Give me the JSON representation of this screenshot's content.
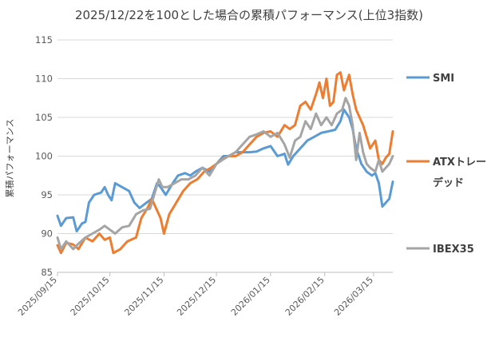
{
  "chart_data": {
    "type": "line",
    "title": "2025/12/22を100とした場合の累積パフォーマンス(上位3指数)",
    "xlabel": "",
    "ylabel": "累積パフォーマンス",
    "ylim": [
      85,
      115
    ],
    "yticks": [
      85,
      90,
      95,
      100,
      105,
      110,
      115
    ],
    "xlim": [
      "2025-09-15",
      "2026-03-26"
    ],
    "xticks": [
      "2025/09/15",
      "2025/10/15",
      "2025/11/15",
      "2025/12/15",
      "2026/01/15",
      "2026/02/15",
      "2026/03/15"
    ],
    "grid": "horizontal",
    "legend_position": "right",
    "series": [
      {
        "name": "SMI",
        "color": "#5b9bd5",
        "points": [
          [
            "2025-09-15",
            92.3
          ],
          [
            "2025-09-17",
            91.0
          ],
          [
            "2025-09-20",
            92.0
          ],
          [
            "2025-09-24",
            92.1
          ],
          [
            "2025-09-26",
            90.3
          ],
          [
            "2025-09-29",
            91.3
          ],
          [
            "2025-10-01",
            91.5
          ],
          [
            "2025-10-03",
            94.0
          ],
          [
            "2025-10-06",
            95.0
          ],
          [
            "2025-10-10",
            95.3
          ],
          [
            "2025-10-12",
            96.0
          ],
          [
            "2025-10-14",
            95.0
          ],
          [
            "2025-10-16",
            94.3
          ],
          [
            "2025-10-18",
            96.5
          ],
          [
            "2025-10-22",
            96.0
          ],
          [
            "2025-10-26",
            95.5
          ],
          [
            "2025-10-29",
            94.0
          ],
          [
            "2025-11-01",
            93.3
          ],
          [
            "2025-11-05",
            94.0
          ],
          [
            "2025-11-08",
            94.5
          ],
          [
            "2025-11-11",
            96.5
          ],
          [
            "2025-11-13",
            96.0
          ],
          [
            "2025-11-16",
            95.0
          ],
          [
            "2025-11-20",
            96.5
          ],
          [
            "2025-11-23",
            97.5
          ],
          [
            "2025-11-27",
            97.8
          ],
          [
            "2025-11-30",
            97.5
          ],
          [
            "2025-12-03",
            98.0
          ],
          [
            "2025-12-07",
            98.5
          ],
          [
            "2025-12-11",
            98.0
          ],
          [
            "2025-12-15",
            99.0
          ],
          [
            "2025-12-19",
            100.0
          ],
          [
            "2025-12-22",
            100.0
          ],
          [
            "2025-12-26",
            100.5
          ],
          [
            "2025-12-30",
            100.5
          ],
          [
            "2026-01-03",
            100.5
          ],
          [
            "2026-01-07",
            100.6
          ],
          [
            "2026-01-11",
            101.0
          ],
          [
            "2026-01-15",
            101.3
          ],
          [
            "2026-01-19",
            100.0
          ],
          [
            "2026-01-23",
            100.3
          ],
          [
            "2026-01-25",
            98.9
          ],
          [
            "2026-01-28",
            100.0
          ],
          [
            "2026-02-01",
            101.0
          ],
          [
            "2026-02-05",
            102.0
          ],
          [
            "2026-02-09",
            102.5
          ],
          [
            "2026-02-13",
            103.0
          ],
          [
            "2026-02-17",
            103.2
          ],
          [
            "2026-02-21",
            103.4
          ],
          [
            "2026-02-24",
            104.5
          ],
          [
            "2026-02-26",
            106.0
          ],
          [
            "2026-03-01",
            105.0
          ],
          [
            "2026-03-03",
            103.5
          ],
          [
            "2026-03-05",
            101.0
          ],
          [
            "2026-03-08",
            99.0
          ],
          [
            "2026-03-11",
            98.0
          ],
          [
            "2026-03-14",
            97.5
          ],
          [
            "2026-03-16",
            97.8
          ],
          [
            "2026-03-18",
            96.5
          ],
          [
            "2026-03-20",
            93.5
          ],
          [
            "2026-03-22",
            94.0
          ],
          [
            "2026-03-24",
            94.5
          ],
          [
            "2026-03-26",
            96.7
          ]
        ]
      },
      {
        "name": "ATXトレーデッド",
        "color": "#ed7d31",
        "points": [
          [
            "2025-09-15",
            88.5
          ],
          [
            "2025-09-17",
            87.5
          ],
          [
            "2025-09-20",
            88.8
          ],
          [
            "2025-09-24",
            88.6
          ],
          [
            "2025-09-27",
            88.0
          ],
          [
            "2025-10-01",
            89.5
          ],
          [
            "2025-10-05",
            89.0
          ],
          [
            "2025-10-09",
            90.0
          ],
          [
            "2025-10-12",
            89.2
          ],
          [
            "2025-10-15",
            89.5
          ],
          [
            "2025-10-17",
            87.5
          ],
          [
            "2025-10-21",
            88.0
          ],
          [
            "2025-10-25",
            89.0
          ],
          [
            "2025-10-30",
            89.5
          ],
          [
            "2025-11-02",
            92.0
          ],
          [
            "2025-11-06",
            93.5
          ],
          [
            "2025-11-08",
            94.5
          ],
          [
            "2025-11-10",
            93.5
          ],
          [
            "2025-11-13",
            92.0
          ],
          [
            "2025-11-15",
            90.0
          ],
          [
            "2025-11-18",
            92.5
          ],
          [
            "2025-11-22",
            94.0
          ],
          [
            "2025-11-26",
            95.5
          ],
          [
            "2025-11-30",
            96.5
          ],
          [
            "2025-12-04",
            97.0
          ],
          [
            "2025-12-08",
            98.0
          ],
          [
            "2025-12-12",
            98.5
          ],
          [
            "2025-12-15",
            99.0
          ],
          [
            "2025-12-19",
            99.7
          ],
          [
            "2025-12-22",
            100.0
          ],
          [
            "2025-12-26",
            100.0
          ],
          [
            "2025-12-30",
            100.5
          ],
          [
            "2026-01-03",
            101.5
          ],
          [
            "2026-01-07",
            102.5
          ],
          [
            "2026-01-11",
            103.0
          ],
          [
            "2026-01-15",
            103.2
          ],
          [
            "2026-01-19",
            102.5
          ],
          [
            "2026-01-23",
            104.0
          ],
          [
            "2026-01-26",
            103.5
          ],
          [
            "2026-01-29",
            104.0
          ],
          [
            "2026-02-01",
            106.5
          ],
          [
            "2026-02-04",
            107.0
          ],
          [
            "2026-02-07",
            106.0
          ],
          [
            "2026-02-10",
            108.0
          ],
          [
            "2026-02-12",
            109.5
          ],
          [
            "2026-02-14",
            107.5
          ],
          [
            "2026-02-16",
            110.0
          ],
          [
            "2026-02-18",
            106.5
          ],
          [
            "2026-02-20",
            107.0
          ],
          [
            "2026-02-22",
            110.5
          ],
          [
            "2026-02-24",
            110.8
          ],
          [
            "2026-02-26",
            108.5
          ],
          [
            "2026-03-01",
            110.5
          ],
          [
            "2026-03-03",
            108.0
          ],
          [
            "2026-03-05",
            106.0
          ],
          [
            "2026-03-07",
            105.0
          ],
          [
            "2026-03-09",
            104.0
          ],
          [
            "2026-03-11",
            102.5
          ],
          [
            "2026-03-13",
            101.0
          ],
          [
            "2026-03-16",
            102.0
          ],
          [
            "2026-03-18",
            99.5
          ],
          [
            "2026-03-20",
            99.0
          ],
          [
            "2026-03-22",
            99.8
          ],
          [
            "2026-03-24",
            100.3
          ],
          [
            "2026-03-26",
            103.2
          ]
        ]
      },
      {
        "name": "IBEX35",
        "color": "#a5a5a5",
        "points": [
          [
            "2025-09-15",
            89.5
          ],
          [
            "2025-09-17",
            88.0
          ],
          [
            "2025-09-20",
            89.0
          ],
          [
            "2025-09-24",
            88.0
          ],
          [
            "2025-09-27",
            88.7
          ],
          [
            "2025-10-01",
            89.5
          ],
          [
            "2025-10-05",
            90.0
          ],
          [
            "2025-10-09",
            90.5
          ],
          [
            "2025-10-12",
            91.0
          ],
          [
            "2025-10-15",
            90.5
          ],
          [
            "2025-10-18",
            90.0
          ],
          [
            "2025-10-22",
            90.8
          ],
          [
            "2025-10-26",
            91.0
          ],
          [
            "2025-10-30",
            92.5
          ],
          [
            "2025-11-03",
            93.0
          ],
          [
            "2025-11-07",
            93.2
          ],
          [
            "2025-11-10",
            95.5
          ],
          [
            "2025-11-12",
            97.0
          ],
          [
            "2025-11-14",
            96.0
          ],
          [
            "2025-11-17",
            96.0
          ],
          [
            "2025-11-21",
            96.5
          ],
          [
            "2025-11-25",
            97.0
          ],
          [
            "2025-11-29",
            97.0
          ],
          [
            "2025-12-03",
            97.5
          ],
          [
            "2025-12-07",
            98.5
          ],
          [
            "2025-12-11",
            97.5
          ],
          [
            "2025-12-15",
            99.0
          ],
          [
            "2025-12-19",
            99.6
          ],
          [
            "2025-12-22",
            100.0
          ],
          [
            "2025-12-26",
            100.5
          ],
          [
            "2025-12-30",
            101.5
          ],
          [
            "2026-01-03",
            102.5
          ],
          [
            "2026-01-07",
            102.8
          ],
          [
            "2026-01-11",
            103.2
          ],
          [
            "2026-01-15",
            102.5
          ],
          [
            "2026-01-19",
            103.0
          ],
          [
            "2026-01-23",
            101.5
          ],
          [
            "2026-01-26",
            99.8
          ],
          [
            "2026-01-29",
            102.0
          ],
          [
            "2026-02-01",
            102.5
          ],
          [
            "2026-02-04",
            104.5
          ],
          [
            "2026-02-07",
            103.5
          ],
          [
            "2026-02-10",
            105.5
          ],
          [
            "2026-02-13",
            104.0
          ],
          [
            "2026-02-16",
            105.0
          ],
          [
            "2026-02-19",
            104.0
          ],
          [
            "2026-02-22",
            105.5
          ],
          [
            "2026-02-25",
            106.0
          ],
          [
            "2026-02-27",
            107.5
          ],
          [
            "2026-03-01",
            106.5
          ],
          [
            "2026-03-03",
            104.0
          ],
          [
            "2026-03-05",
            99.5
          ],
          [
            "2026-03-07",
            103.0
          ],
          [
            "2026-03-09",
            100.5
          ],
          [
            "2026-03-11",
            99.0
          ],
          [
            "2026-03-13",
            98.5
          ],
          [
            "2026-03-16",
            98.0
          ],
          [
            "2026-03-18",
            99.5
          ],
          [
            "2026-03-20",
            98.0
          ],
          [
            "2026-03-22",
            98.5
          ],
          [
            "2026-03-24",
            99.0
          ],
          [
            "2026-03-26",
            100.0
          ]
        ]
      }
    ]
  }
}
